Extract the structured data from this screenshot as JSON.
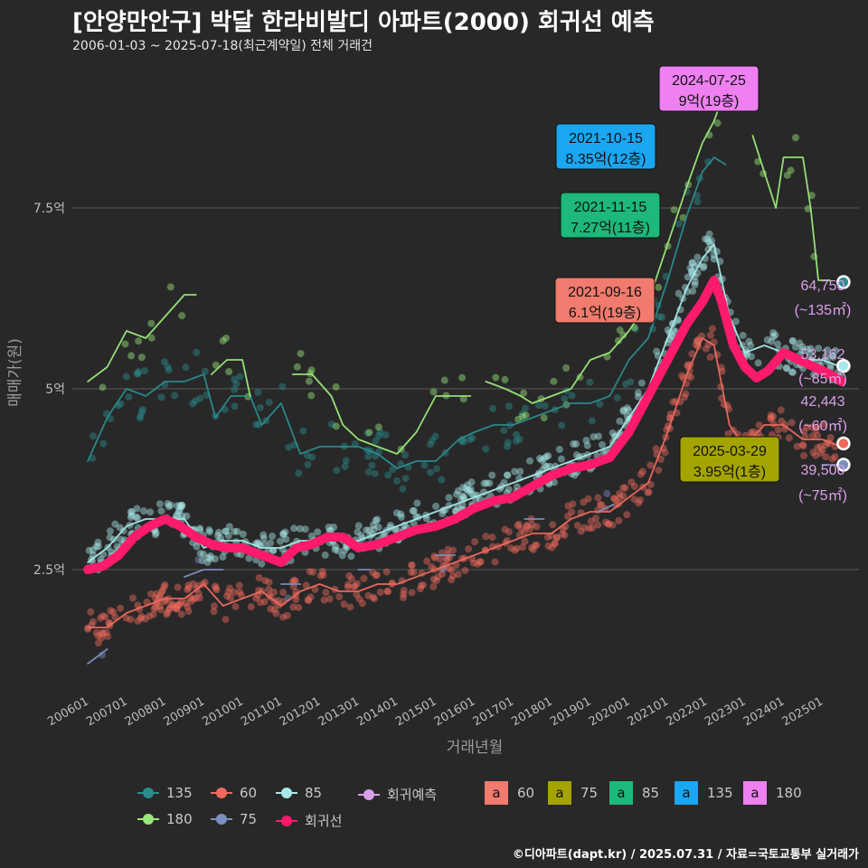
{
  "header": {
    "title": "[안양만안구] 박달 한라비발디 아파트(2000) 회귀선 예측",
    "subtitle": "2006-01-03 ~ 2025-07-18(최근계약일) 전체 거래건",
    "credit": "©디아파트(dapt.kr) / 2025.07.31 / 자료=국토교통부 실거래가"
  },
  "colors": {
    "s135": "#2a8c8c",
    "s60": "#ef6a5e",
    "s85": "#a8e8e8",
    "s180": "#9be87a",
    "s75": "#7b8fbf",
    "trend": "#ff1a6c",
    "forecast": "#d9a0e8",
    "box60": "#f07b6e",
    "box75": "#a4a400",
    "box85": "#1db87a",
    "box135": "#1aa6f0",
    "box180": "#ee80f2"
  },
  "legend": {
    "row1": [
      "135",
      "60",
      "85",
      "회귀예측"
    ],
    "row2": [
      "180",
      "75",
      "회귀선"
    ],
    "boxes": [
      "60",
      "75",
      "85",
      "135",
      "180"
    ],
    "box_glyph": "a"
  },
  "chart_data": {
    "type": "line",
    "xlabel": "거래년월",
    "ylabel": "매매가(원)",
    "ylim": [
      0.85,
      9.6
    ],
    "yunit": "억",
    "yticks": [
      2.5,
      5,
      7.5
    ],
    "ytick_labels": [
      "2.5억",
      "5억",
      "7.5억"
    ],
    "xticks": [
      "200601",
      "200701",
      "200801",
      "200901",
      "201001",
      "201101",
      "201201",
      "201301",
      "201401",
      "201501",
      "201601",
      "201701",
      "201801",
      "201901",
      "202001",
      "202101",
      "202201",
      "202301",
      "202401",
      "202501"
    ],
    "grid": true,
    "legend_position": "bottom",
    "series": [
      {
        "name": "135",
        "color_key": "s135",
        "points": [
          [
            2006.0,
            4.0
          ],
          [
            2006.5,
            4.6
          ],
          [
            2007.0,
            5.0
          ],
          [
            2007.5,
            4.9
          ],
          [
            2008.0,
            5.1
          ],
          [
            2008.5,
            5.1
          ],
          [
            2009.0,
            5.2
          ],
          [
            2009.3,
            4.6
          ],
          [
            2009.7,
            4.9
          ],
          [
            2010.2,
            4.9
          ],
          [
            2010.5,
            4.5
          ],
          [
            2011.0,
            4.8
          ],
          [
            2011.5,
            4.1
          ],
          [
            2012.0,
            4.2
          ],
          [
            2012.6,
            4.2
          ],
          [
            2013.0,
            4.2
          ],
          [
            2013.5,
            4.1
          ],
          [
            2014.0,
            3.9
          ],
          [
            2014.5,
            4.0
          ],
          [
            2015.0,
            4.0
          ],
          [
            2015.6,
            4.3
          ],
          [
            2016.0,
            4.4
          ],
          [
            2016.5,
            4.5
          ],
          [
            2017.0,
            4.5
          ],
          [
            2017.5,
            4.6
          ],
          [
            2018.0,
            4.7
          ],
          [
            2018.5,
            4.8
          ],
          [
            2019.0,
            4.8
          ],
          [
            2019.5,
            4.9
          ],
          [
            2020.0,
            5.4
          ],
          [
            2020.5,
            5.7
          ],
          [
            2021.0,
            6.5
          ],
          [
            2021.5,
            7.4
          ],
          [
            2021.9,
            8.0
          ],
          [
            2022.2,
            8.2
          ],
          [
            2022.5,
            8.1
          ]
        ]
      },
      {
        "name": "60",
        "color_key": "s60",
        "points": [
          [
            2006.0,
            1.7
          ],
          [
            2006.5,
            1.7
          ],
          [
            2007.0,
            1.9
          ],
          [
            2007.5,
            2.0
          ],
          [
            2008.0,
            2.1
          ],
          [
            2008.5,
            2.1
          ],
          [
            2009.0,
            2.3
          ],
          [
            2009.5,
            2.0
          ],
          [
            2010.0,
            2.1
          ],
          [
            2010.5,
            2.2
          ],
          [
            2011.0,
            2.0
          ],
          [
            2011.5,
            2.2
          ],
          [
            2012.0,
            2.3
          ],
          [
            2012.5,
            2.2
          ],
          [
            2013.0,
            2.2
          ],
          [
            2013.5,
            2.3
          ],
          [
            2014.0,
            2.3
          ],
          [
            2014.5,
            2.4
          ],
          [
            2015.0,
            2.5
          ],
          [
            2015.5,
            2.6
          ],
          [
            2016.0,
            2.7
          ],
          [
            2016.5,
            2.8
          ],
          [
            2017.0,
            2.9
          ],
          [
            2017.5,
            3.0
          ],
          [
            2018.0,
            3.0
          ],
          [
            2018.5,
            3.2
          ],
          [
            2019.0,
            3.3
          ],
          [
            2019.5,
            3.3
          ],
          [
            2020.0,
            3.5
          ],
          [
            2020.5,
            3.7
          ],
          [
            2021.0,
            4.4
          ],
          [
            2021.5,
            5.2
          ],
          [
            2021.9,
            5.7
          ],
          [
            2022.2,
            5.6
          ],
          [
            2022.6,
            4.5
          ],
          [
            2023.0,
            4.2
          ],
          [
            2023.5,
            4.5
          ],
          [
            2024.0,
            4.5
          ],
          [
            2024.5,
            4.3
          ],
          [
            2025.0,
            4.3
          ],
          [
            2025.5,
            4.2
          ]
        ]
      },
      {
        "name": "85",
        "color_key": "s85",
        "points": [
          [
            2006.0,
            2.6
          ],
          [
            2006.5,
            2.8
          ],
          [
            2007.0,
            3.1
          ],
          [
            2007.5,
            3.2
          ],
          [
            2008.0,
            3.2
          ],
          [
            2008.5,
            3.2
          ],
          [
            2009.0,
            2.8
          ],
          [
            2009.5,
            2.9
          ],
          [
            2010.0,
            2.9
          ],
          [
            2010.5,
            2.8
          ],
          [
            2011.0,
            2.8
          ],
          [
            2011.5,
            2.9
          ],
          [
            2012.0,
            2.9
          ],
          [
            2012.5,
            2.9
          ],
          [
            2013.0,
            2.9
          ],
          [
            2013.5,
            3.0
          ],
          [
            2014.0,
            3.1
          ],
          [
            2014.5,
            3.2
          ],
          [
            2015.0,
            3.3
          ],
          [
            2015.5,
            3.4
          ],
          [
            2016.0,
            3.5
          ],
          [
            2016.5,
            3.6
          ],
          [
            2017.0,
            3.7
          ],
          [
            2017.5,
            3.8
          ],
          [
            2018.0,
            3.9
          ],
          [
            2018.5,
            4.0
          ],
          [
            2019.0,
            4.1
          ],
          [
            2019.5,
            4.2
          ],
          [
            2020.0,
            4.6
          ],
          [
            2020.5,
            5.0
          ],
          [
            2021.0,
            5.7
          ],
          [
            2021.5,
            6.4
          ],
          [
            2021.9,
            6.8
          ],
          [
            2022.2,
            7.0
          ],
          [
            2022.6,
            6.0
          ],
          [
            2023.0,
            5.5
          ],
          [
            2023.5,
            5.6
          ],
          [
            2024.0,
            5.5
          ],
          [
            2024.5,
            5.4
          ],
          [
            2025.0,
            5.4
          ],
          [
            2025.5,
            5.3
          ]
        ]
      },
      {
        "name": "180",
        "color_key": "s180",
        "points": [
          [
            2006.0,
            5.1
          ],
          [
            2006.5,
            5.3
          ],
          [
            2007.0,
            5.8
          ],
          [
            2007.5,
            5.7
          ],
          [
            2008.0,
            6.0
          ],
          [
            2008.5,
            6.3
          ],
          [
            2008.8,
            6.3
          ],
          [
            null,
            null
          ],
          [
            2009.2,
            5.2
          ],
          [
            2009.6,
            5.4
          ],
          [
            2010.0,
            5.4
          ],
          [
            2010.2,
            4.9
          ],
          [
            null,
            null
          ],
          [
            2011.3,
            5.2
          ],
          [
            2011.8,
            5.2
          ],
          [
            2012.3,
            4.9
          ],
          [
            2012.6,
            4.5
          ],
          [
            2013.0,
            4.3
          ],
          [
            2013.5,
            4.2
          ],
          [
            2014.0,
            4.1
          ],
          [
            2014.5,
            4.4
          ],
          [
            2015.0,
            4.9
          ],
          [
            2015.5,
            4.9
          ],
          [
            2015.9,
            4.9
          ],
          [
            null,
            null
          ],
          [
            2016.3,
            5.1
          ],
          [
            2016.8,
            5.0
          ],
          [
            2017.2,
            4.9
          ],
          [
            2017.5,
            4.8
          ],
          [
            2018.0,
            4.9
          ],
          [
            2018.5,
            5.0
          ],
          [
            2019.0,
            5.4
          ],
          [
            2019.5,
            5.5
          ],
          [
            2020.0,
            5.8
          ],
          [
            2020.5,
            6.2
          ],
          [
            2021.0,
            7.0
          ],
          [
            2021.5,
            7.8
          ],
          [
            2021.9,
            8.4
          ],
          [
            2022.2,
            8.7
          ],
          [
            2022.4,
            9.0
          ],
          [
            null,
            null
          ],
          [
            2023.2,
            8.5
          ],
          [
            2023.8,
            7.5
          ],
          [
            2024.0,
            8.2
          ],
          [
            2024.5,
            8.2
          ],
          [
            2024.7,
            7.5
          ],
          [
            2024.9,
            6.5
          ],
          [
            2025.2,
            6.5
          ]
        ]
      },
      {
        "name": "75",
        "color_key": "s75",
        "points": [
          [
            2006.0,
            1.2
          ],
          [
            2006.5,
            1.4
          ],
          [
            null,
            null
          ],
          [
            2008.5,
            2.4
          ],
          [
            2009.0,
            2.5
          ],
          [
            2009.5,
            2.5
          ],
          [
            null,
            null
          ],
          [
            2011.0,
            2.3
          ],
          [
            2011.5,
            2.3
          ],
          [
            null,
            null
          ],
          [
            2013.0,
            2.5
          ],
          [
            2013.3,
            2.5
          ],
          [
            null,
            null
          ],
          [
            2015.0,
            2.7
          ],
          [
            2015.5,
            2.7
          ],
          [
            null,
            null
          ],
          [
            2017.3,
            3.2
          ],
          [
            2017.8,
            3.2
          ],
          [
            null,
            null
          ],
          [
            2019.2,
            3.3
          ],
          [
            2019.6,
            3.4
          ],
          [
            null,
            null
          ],
          [
            2025.0,
            3.95
          ],
          [
            2025.5,
            3.95
          ]
        ]
      },
      {
        "name": "회귀선",
        "color_key": "trend",
        "points": [
          [
            2006.0,
            2.5
          ],
          [
            2006.4,
            2.55
          ],
          [
            2006.8,
            2.7
          ],
          [
            2007.2,
            2.95
          ],
          [
            2007.6,
            3.1
          ],
          [
            2008.0,
            3.2
          ],
          [
            2008.4,
            3.1
          ],
          [
            2008.8,
            2.95
          ],
          [
            2009.2,
            2.85
          ],
          [
            2009.6,
            2.8
          ],
          [
            2010.0,
            2.8
          ],
          [
            2010.5,
            2.7
          ],
          [
            2011.0,
            2.6
          ],
          [
            2011.4,
            2.8
          ],
          [
            2011.8,
            2.85
          ],
          [
            2012.2,
            2.95
          ],
          [
            2012.6,
            2.95
          ],
          [
            2013.0,
            2.8
          ],
          [
            2013.5,
            2.85
          ],
          [
            2014.0,
            2.95
          ],
          [
            2014.5,
            3.05
          ],
          [
            2015.0,
            3.1
          ],
          [
            2015.5,
            3.2
          ],
          [
            2016.0,
            3.35
          ],
          [
            2016.5,
            3.45
          ],
          [
            2017.0,
            3.5
          ],
          [
            2017.5,
            3.65
          ],
          [
            2018.0,
            3.8
          ],
          [
            2018.5,
            3.9
          ],
          [
            2019.0,
            3.95
          ],
          [
            2019.5,
            4.05
          ],
          [
            2020.0,
            4.4
          ],
          [
            2020.5,
            4.9
          ],
          [
            2021.0,
            5.4
          ],
          [
            2021.5,
            5.9
          ],
          [
            2021.9,
            6.2
          ],
          [
            2022.2,
            6.5
          ],
          [
            2022.4,
            6.2
          ],
          [
            2022.7,
            5.6
          ],
          [
            2023.0,
            5.3
          ],
          [
            2023.3,
            5.15
          ],
          [
            2023.6,
            5.25
          ],
          [
            2024.0,
            5.5
          ],
          [
            2024.4,
            5.4
          ],
          [
            2024.8,
            5.3
          ],
          [
            2025.2,
            5.2
          ],
          [
            2025.5,
            5.1
          ]
        ]
      }
    ],
    "forecast_points": [
      {
        "series": "135",
        "x": 2025.55,
        "y": 6.475,
        "color_key": "s135"
      },
      {
        "series": "85",
        "x": 2025.55,
        "y": 5.3162,
        "color_key": "s85"
      },
      {
        "series": "60",
        "x": 2025.55,
        "y": 4.2443,
        "color_key": "s60"
      },
      {
        "series": "75",
        "x": 2025.55,
        "y": 3.95,
        "color_key": "s75"
      }
    ],
    "forecast_labels": [
      {
        "value": "64,750",
        "area": "(~135㎡)",
        "y": 6.475
      },
      {
        "value": "53,162",
        "area": "(~85㎡)",
        "y": 5.3162
      },
      {
        "value": "42,443",
        "area": "(~60㎡)",
        "y": 4.2443
      },
      {
        "value": "39,500",
        "area": "(~75㎡)",
        "y": 3.95
      }
    ],
    "annotations": [
      {
        "date": "2024-07-25",
        "price": "9억(19층)",
        "color_key": "box180",
        "x": 2024.56,
        "y": 9.0
      },
      {
        "date": "2021-10-15",
        "price": "8.35억(12층)",
        "color_key": "box135",
        "x": 2021.79,
        "y": 8.35
      },
      {
        "date": "2021-11-15",
        "price": "7.27억(11층)",
        "color_key": "box85",
        "x": 2021.87,
        "y": 7.27
      },
      {
        "date": "2021-09-16",
        "price": "6.1억(19층)",
        "color_key": "box60",
        "x": 2021.71,
        "y": 6.1
      },
      {
        "date": "2025-03-29",
        "price": "3.95억(1층)",
        "color_key": "box75",
        "x": 2025.24,
        "y": 3.95
      }
    ]
  }
}
